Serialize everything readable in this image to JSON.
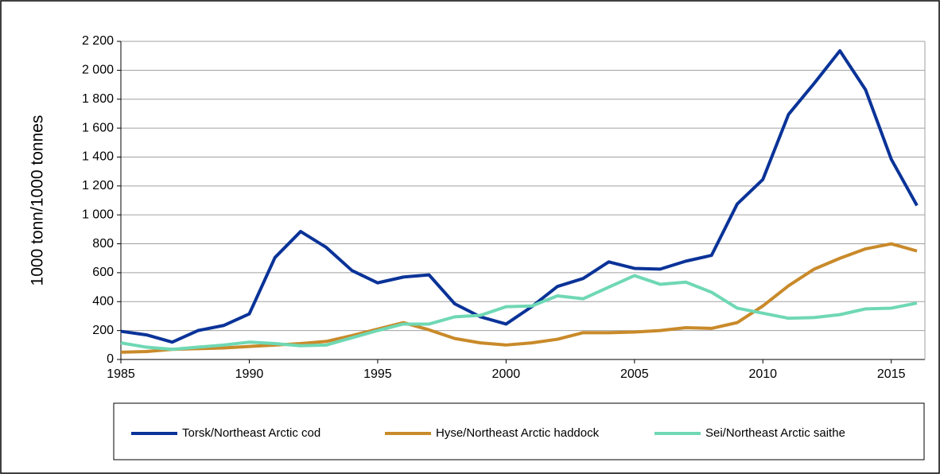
{
  "chart_data": {
    "type": "line",
    "y_label": "1000 tonn/1000 tonnes",
    "x": [
      1985,
      1986,
      1987,
      1988,
      1989,
      1990,
      1991,
      1992,
      1993,
      1994,
      1995,
      1996,
      1997,
      1998,
      1999,
      2000,
      2001,
      2002,
      2003,
      2004,
      2005,
      2006,
      2007,
      2008,
      2009,
      2010,
      2011,
      2012,
      2013,
      2014,
      2015,
      2016
    ],
    "xlim": [
      1985,
      2016
    ],
    "xticks": [
      1985,
      1990,
      1995,
      2000,
      2005,
      2010,
      2015
    ],
    "ylim": [
      0,
      2200
    ],
    "yticks": [
      0,
      200,
      400,
      600,
      800,
      {
        "value": 1000,
        "label": "1 000"
      },
      {
        "value": 1200,
        "label": "1 200"
      },
      {
        "value": 1400,
        "label": "1 400"
      },
      {
        "value": 1600,
        "label": "1 600"
      },
      {
        "value": 1800,
        "label": "1 800"
      },
      {
        "value": 2000,
        "label": "2 000"
      },
      {
        "value": 2200,
        "label": "2 200"
      }
    ],
    "grid": true,
    "legend_position": "bottom",
    "series": [
      {
        "name": "Torsk/Northeast Arctic cod",
        "color": "#0a3398",
        "values": [
          195,
          170,
          120,
          200,
          235,
          315,
          705,
          885,
          775,
          615,
          530,
          570,
          585,
          385,
          295,
          245,
          365,
          505,
          560,
          675,
          630,
          625,
          680,
          720,
          1075,
          1245,
          1695,
          1910,
          2135,
          1865,
          1385,
          1065
        ]
      },
      {
        "name": "Hyse/Northeast Arctic haddock",
        "color": "#c98a2a",
        "values": [
          50,
          55,
          70,
          75,
          80,
          90,
          100,
          110,
          125,
          165,
          210,
          255,
          205,
          145,
          115,
          100,
          115,
          140,
          185,
          185,
          190,
          200,
          220,
          215,
          255,
          370,
          510,
          625,
          700,
          765,
          800,
          750
        ]
      },
      {
        "name": "Sei/Northeast Arctic saithe",
        "color": "#6fd8b4",
        "values": [
          115,
          85,
          70,
          85,
          100,
          120,
          110,
          95,
          100,
          150,
          200,
          245,
          245,
          295,
          305,
          365,
          370,
          440,
          420,
          500,
          580,
          520,
          535,
          465,
          355,
          320,
          285,
          290,
          310,
          350,
          355,
          390
        ]
      }
    ]
  }
}
